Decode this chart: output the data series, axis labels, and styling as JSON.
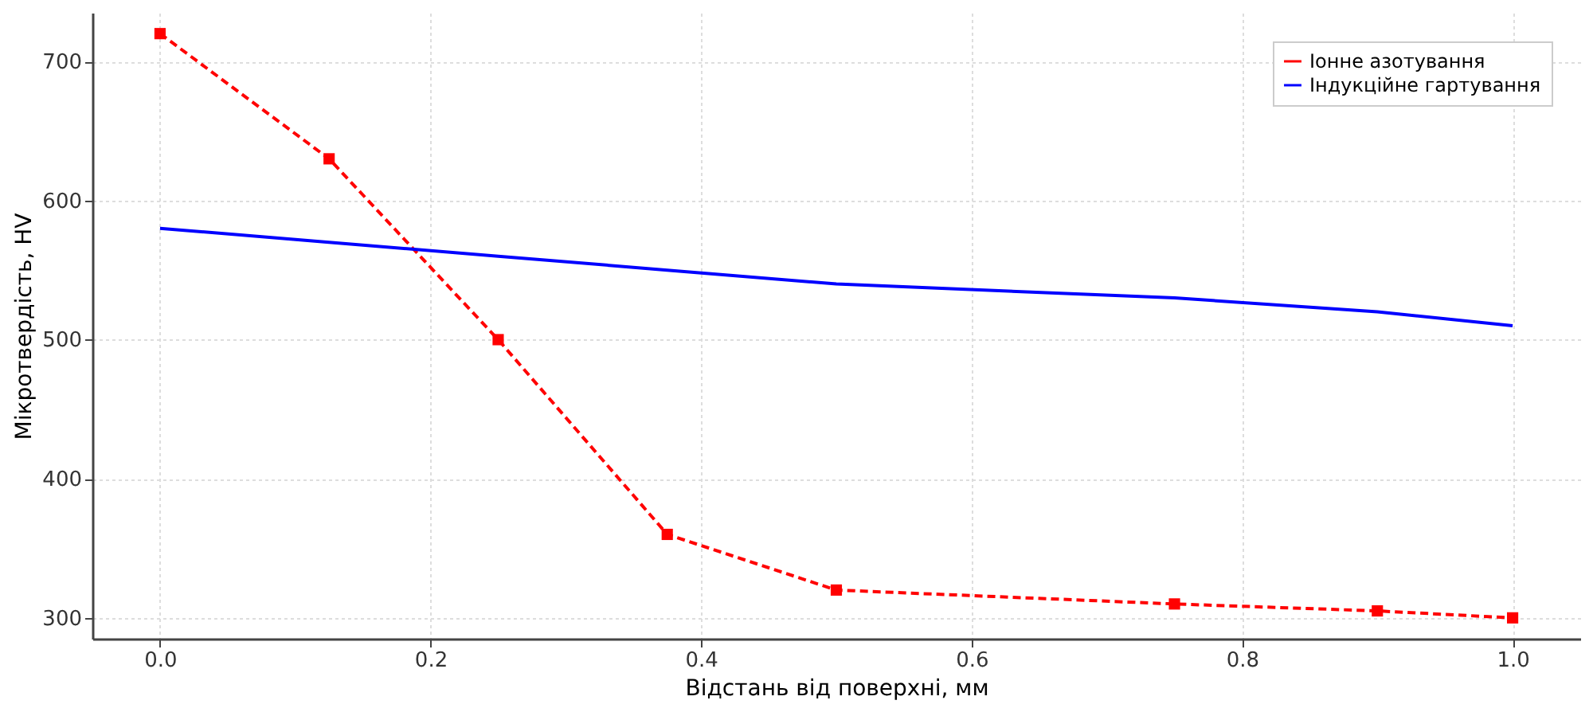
{
  "chart_data": {
    "type": "line",
    "xlabel": "Відстань від поверхні, мм",
    "ylabel": "Мікротвердість, HV",
    "x": [
      0.0,
      0.125,
      0.25,
      0.375,
      0.5,
      0.75,
      0.9,
      1.0
    ],
    "series": [
      {
        "name": "Іонне азотування",
        "color": "#ff0000",
        "values": [
          720,
          630,
          500,
          360,
          320,
          310,
          305,
          300
        ],
        "marker": "square",
        "line_style": "dashed"
      },
      {
        "name": "Індукційне гартування",
        "color": "#0000ff",
        "values": [
          580,
          570,
          560,
          550,
          540,
          530,
          520,
          510
        ],
        "marker": "none",
        "line_style": "solid"
      }
    ],
    "xlim": [
      -0.05,
      1.05
    ],
    "ylim": [
      285,
      735
    ],
    "xticks": [
      {
        "value": 0,
        "label": "0.0"
      },
      0.2,
      0.4,
      0.6,
      0.8,
      {
        "value": 1,
        "label": "1.0"
      }
    ],
    "yticks": [
      300,
      400,
      500,
      600,
      700
    ],
    "grid": true,
    "legend": "top right"
  }
}
